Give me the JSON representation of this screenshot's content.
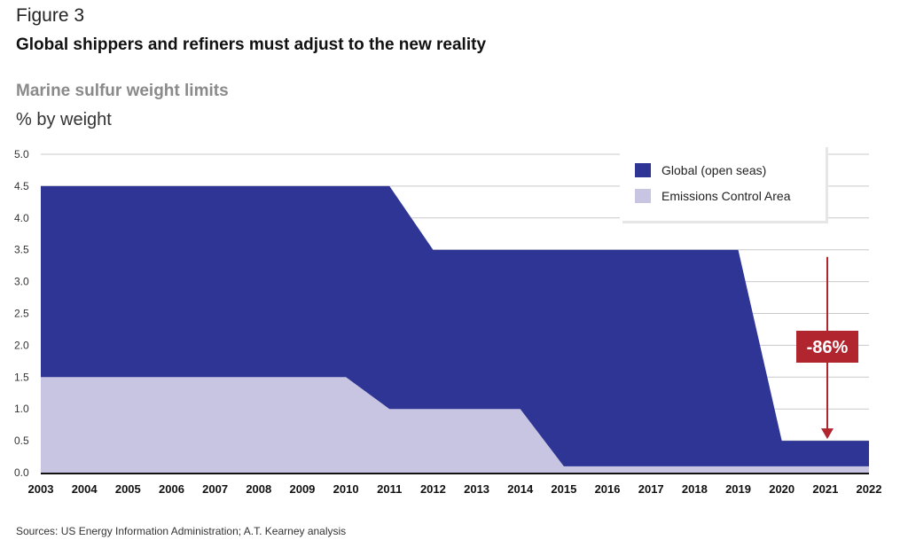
{
  "figure": {
    "label": "Figure 3",
    "title": "Global shippers and refiners must adjust to the new reality",
    "source": "Sources: US Energy Information Administration; A.T. Kearney analysis"
  },
  "chart_data": {
    "type": "area",
    "title": "Marine sulfur weight limits",
    "ylabel": "% by weight",
    "xlabel": "",
    "ylim": [
      0,
      5.0
    ],
    "yticks": [
      "0.0",
      "0.5",
      "1.0",
      "1.5",
      "2.0",
      "2.5",
      "3.0",
      "3.5",
      "4.0",
      "4.5",
      "5.0"
    ],
    "categories": [
      "2003",
      "2004",
      "2005",
      "2006",
      "2007",
      "2008",
      "2009",
      "2010",
      "2011",
      "2012",
      "2013",
      "2014",
      "2015",
      "2016",
      "2017",
      "2018",
      "2019",
      "2020",
      "2021",
      "2022"
    ],
    "series": [
      {
        "name": "Global (open seas)",
        "color": "#2e3594",
        "points": [
          [
            2003,
            4.5
          ],
          [
            2011,
            4.5
          ],
          [
            2012,
            3.5
          ],
          [
            2019,
            3.5
          ],
          [
            2020,
            0.5
          ],
          [
            2022,
            0.5
          ]
        ]
      },
      {
        "name": "Emissions Control Area",
        "color": "#c8c5e3",
        "points": [
          [
            2003,
            1.5
          ],
          [
            2010,
            1.5
          ],
          [
            2011,
            1.0
          ],
          [
            2014,
            1.0
          ],
          [
            2015,
            0.1
          ],
          [
            2022,
            0.1
          ]
        ]
      }
    ],
    "legend": {
      "position": "top-right"
    },
    "grid": true,
    "annotation": {
      "text": "-86%",
      "color": "#b0252e",
      "arrow_from": 3.5,
      "arrow_to": 0.5,
      "year": 2021
    }
  }
}
